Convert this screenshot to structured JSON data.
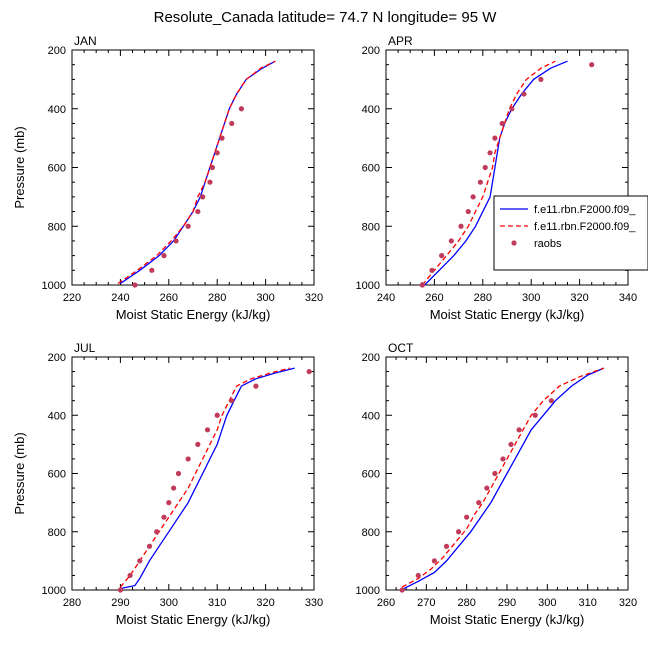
{
  "figure": {
    "title": "Resolute_Canada  latitude= 74.7 N longitude= 95 W"
  },
  "legend": {
    "entries": [
      {
        "label": "f.e11.rbn.F2000.f09_",
        "style": "solid",
        "color": "#0000ff"
      },
      {
        "label": "f.e11.rbn.F2000.f09_",
        "style": "dashed",
        "color": "#ff0000"
      },
      {
        "label": "raobs",
        "style": "marker",
        "color": "#c03a5a"
      }
    ]
  },
  "chart_data": [
    {
      "type": "line",
      "panel_label": "JAN",
      "xlabel": "Moist Static Energy (kJ/kg)",
      "ylabel": "Pressure (mb)",
      "xlim": [
        220,
        320
      ],
      "ylim": [
        1000,
        200
      ],
      "y_reversed": true,
      "xticks": [
        "220",
        "240",
        "260",
        "280",
        "300",
        "320"
      ],
      "yticks": [
        "200",
        "400",
        "600",
        "800",
        "1000"
      ],
      "series": [
        {
          "name": "f.e11.rbn.F2000.f09_",
          "color": "#0000ff",
          "dash": false,
          "points": [
            [
              240,
              995
            ],
            [
              248,
              950
            ],
            [
              256,
              900
            ],
            [
              262,
              850
            ],
            [
              266,
              800
            ],
            [
              270,
              750
            ],
            [
              273,
              700
            ],
            [
              275,
              650
            ],
            [
              277,
              600
            ],
            [
              279,
              550
            ],
            [
              281,
              500
            ],
            [
              283,
              450
            ],
            [
              285,
              400
            ],
            [
              288,
              350
            ],
            [
              292,
              300
            ],
            [
              298,
              265
            ],
            [
              304,
              238
            ]
          ]
        },
        {
          "name": "f.e11.rbn.F2000.f09_",
          "color": "#ff0000",
          "dash": true,
          "points": [
            [
              239,
              995
            ],
            [
              247,
              950
            ],
            [
              255,
              900
            ],
            [
              261,
              850
            ],
            [
              266,
              800
            ],
            [
              270,
              750
            ],
            [
              272,
              700
            ],
            [
              275,
              650
            ],
            [
              277,
              600
            ],
            [
              279,
              550
            ],
            [
              281,
              500
            ],
            [
              283,
              450
            ],
            [
              285,
              400
            ],
            [
              288,
              350
            ],
            [
              292,
              300
            ],
            [
              298,
              262
            ],
            [
              304,
              238
            ]
          ]
        },
        {
          "name": "raobs",
          "color": "#c03a5a",
          "marker": true,
          "points": [
            [
              246,
              1000
            ],
            [
              253,
              950
            ],
            [
              258,
              900
            ],
            [
              263,
              850
            ],
            [
              268,
              800
            ],
            [
              272,
              750
            ],
            [
              274,
              700
            ],
            [
              277,
              650
            ],
            [
              278,
              600
            ],
            [
              280,
              550
            ],
            [
              282,
              500
            ],
            [
              286,
              450
            ],
            [
              290,
              400
            ]
          ]
        }
      ]
    },
    {
      "type": "line",
      "panel_label": "APR",
      "xlabel": "Moist Static Energy (kJ/kg)",
      "ylabel": "",
      "xlim": [
        240,
        340
      ],
      "ylim": [
        1000,
        200
      ],
      "y_reversed": true,
      "xticks": [
        "240",
        "260",
        "280",
        "300",
        "320",
        "340"
      ],
      "yticks": [
        "200",
        "400",
        "600",
        "800",
        "1000"
      ],
      "series": [
        {
          "name": "f.e11.rbn.F2000.f09_",
          "color": "#0000ff",
          "dash": false,
          "points": [
            [
              256,
              1000
            ],
            [
              262,
              950
            ],
            [
              268,
              900
            ],
            [
              273,
              850
            ],
            [
              277,
              800
            ],
            [
              280,
              750
            ],
            [
              283,
              700
            ],
            [
              284,
              650
            ],
            [
              285,
              600
            ],
            [
              286,
              550
            ],
            [
              287,
              500
            ],
            [
              289,
              450
            ],
            [
              292,
              400
            ],
            [
              296,
              350
            ],
            [
              301,
              300
            ],
            [
              308,
              262
            ],
            [
              315,
              238
            ]
          ]
        },
        {
          "name": "f.e11.rbn.F2000.f09_",
          "color": "#ff0000",
          "dash": true,
          "points": [
            [
              255,
              1000
            ],
            [
              260,
              950
            ],
            [
              265,
              900
            ],
            [
              270,
              850
            ],
            [
              274,
              800
            ],
            [
              277,
              750
            ],
            [
              280,
              700
            ],
            [
              282,
              650
            ],
            [
              284,
              600
            ],
            [
              285,
              550
            ],
            [
              287,
              500
            ],
            [
              289,
              450
            ],
            [
              291,
              400
            ],
            [
              294,
              350
            ],
            [
              298,
              300
            ],
            [
              304,
              262
            ],
            [
              310,
              238
            ]
          ]
        },
        {
          "name": "raobs",
          "color": "#c03a5a",
          "marker": true,
          "points": [
            [
              255,
              1000
            ],
            [
              259,
              950
            ],
            [
              263,
              900
            ],
            [
              267,
              850
            ],
            [
              271,
              800
            ],
            [
              274,
              750
            ],
            [
              276,
              700
            ],
            [
              279,
              650
            ],
            [
              281,
              600
            ],
            [
              283,
              550
            ],
            [
              285,
              500
            ],
            [
              288,
              450
            ],
            [
              292,
              400
            ],
            [
              297,
              350
            ],
            [
              304,
              300
            ],
            [
              325,
              250
            ]
          ]
        }
      ]
    },
    {
      "type": "line",
      "panel_label": "JUL",
      "xlabel": "Moist Static Energy (kJ/kg)",
      "ylabel": "Pressure (mb)",
      "xlim": [
        280,
        330
      ],
      "ylim": [
        1000,
        200
      ],
      "y_reversed": true,
      "xticks": [
        "280",
        "290",
        "300",
        "310",
        "320",
        "330"
      ],
      "yticks": [
        "200",
        "400",
        "600",
        "800",
        "1000"
      ],
      "series": [
        {
          "name": "f.e11.rbn.F2000.f09_",
          "color": "#0000ff",
          "dash": false,
          "points": [
            [
              290,
              995
            ],
            [
              293,
              985
            ],
            [
              294,
              960
            ],
            [
              296,
              900
            ],
            [
              298,
              850
            ],
            [
              300,
              800
            ],
            [
              302,
              750
            ],
            [
              304,
              700
            ],
            [
              305.5,
              650
            ],
            [
              307,
              600
            ],
            [
              308.5,
              550
            ],
            [
              310,
              500
            ],
            [
              311,
              450
            ],
            [
              312,
              400
            ],
            [
              313.5,
              350
            ],
            [
              315,
              300
            ],
            [
              318,
              275
            ],
            [
              322,
              255
            ],
            [
              326,
              238
            ]
          ]
        },
        {
          "name": "f.e11.rbn.F2000.f09_",
          "color": "#ff0000",
          "dash": true,
          "points": [
            [
              290,
              990
            ],
            [
              292,
              950
            ],
            [
              294,
              900
            ],
            [
              296,
              850
            ],
            [
              298,
              800
            ],
            [
              300,
              750
            ],
            [
              302,
              700
            ],
            [
              304,
              650
            ],
            [
              305.5,
              600
            ],
            [
              307,
              550
            ],
            [
              308.5,
              500
            ],
            [
              310,
              450
            ],
            [
              311,
              400
            ],
            [
              312.5,
              350
            ],
            [
              314,
              300
            ],
            [
              317,
              275
            ],
            [
              321,
              255
            ],
            [
              325,
              238
            ]
          ]
        },
        {
          "name": "raobs",
          "color": "#c03a5a",
          "marker": true,
          "points": [
            [
              290,
              1000
            ],
            [
              292,
              950
            ],
            [
              294,
              900
            ],
            [
              296,
              850
            ],
            [
              297.5,
              800
            ],
            [
              299,
              750
            ],
            [
              300,
              700
            ],
            [
              301,
              650
            ],
            [
              302,
              600
            ],
            [
              304,
              550
            ],
            [
              306,
              500
            ],
            [
              308,
              450
            ],
            [
              310,
              400
            ],
            [
              313,
              350
            ],
            [
              318,
              300
            ],
            [
              329,
              250
            ]
          ]
        }
      ]
    },
    {
      "type": "line",
      "panel_label": "OCT",
      "xlabel": "Moist Static Energy (kJ/kg)",
      "ylabel": "",
      "xlim": [
        260,
        320
      ],
      "ylim": [
        1000,
        200
      ],
      "y_reversed": true,
      "xticks": [
        "260",
        "270",
        "280",
        "290",
        "300",
        "310",
        "320"
      ],
      "yticks": [
        "200",
        "400",
        "600",
        "800",
        "1000"
      ],
      "series": [
        {
          "name": "f.e11.rbn.F2000.f09_",
          "color": "#0000ff",
          "dash": false,
          "points": [
            [
              264,
              998
            ],
            [
              268,
              970
            ],
            [
              272,
              940
            ],
            [
              275,
              900
            ],
            [
              278,
              850
            ],
            [
              281,
              800
            ],
            [
              283.5,
              750
            ],
            [
              286,
              700
            ],
            [
              288,
              650
            ],
            [
              290,
              600
            ],
            [
              292,
              550
            ],
            [
              294,
              500
            ],
            [
              296,
              450
            ],
            [
              299,
              400
            ],
            [
              302,
              350
            ],
            [
              306,
              300
            ],
            [
              310,
              262
            ],
            [
              314,
              238
            ]
          ]
        },
        {
          "name": "f.e11.rbn.F2000.f09_",
          "color": "#ff0000",
          "dash": true,
          "points": [
            [
              264,
              990
            ],
            [
              268,
              960
            ],
            [
              271,
              930
            ],
            [
              274,
              890
            ],
            [
              277,
              840
            ],
            [
              280,
              790
            ],
            [
              282,
              740
            ],
            [
              284,
              700
            ],
            [
              286,
              650
            ],
            [
              288,
              600
            ],
            [
              290,
              550
            ],
            [
              292,
              500
            ],
            [
              294,
              450
            ],
            [
              296,
              400
            ],
            [
              299,
              350
            ],
            [
              303,
              300
            ],
            [
              308,
              268
            ],
            [
              314,
              238
            ]
          ]
        },
        {
          "name": "raobs",
          "color": "#c03a5a",
          "marker": true,
          "points": [
            [
              264,
              1000
            ],
            [
              268,
              950
            ],
            [
              272,
              900
            ],
            [
              275,
              850
            ],
            [
              278,
              800
            ],
            [
              280,
              750
            ],
            [
              283,
              700
            ],
            [
              285,
              650
            ],
            [
              287,
              600
            ],
            [
              289,
              550
            ],
            [
              291,
              500
            ],
            [
              293,
              450
            ],
            [
              297,
              400
            ],
            [
              301,
              350
            ]
          ]
        }
      ]
    }
  ]
}
